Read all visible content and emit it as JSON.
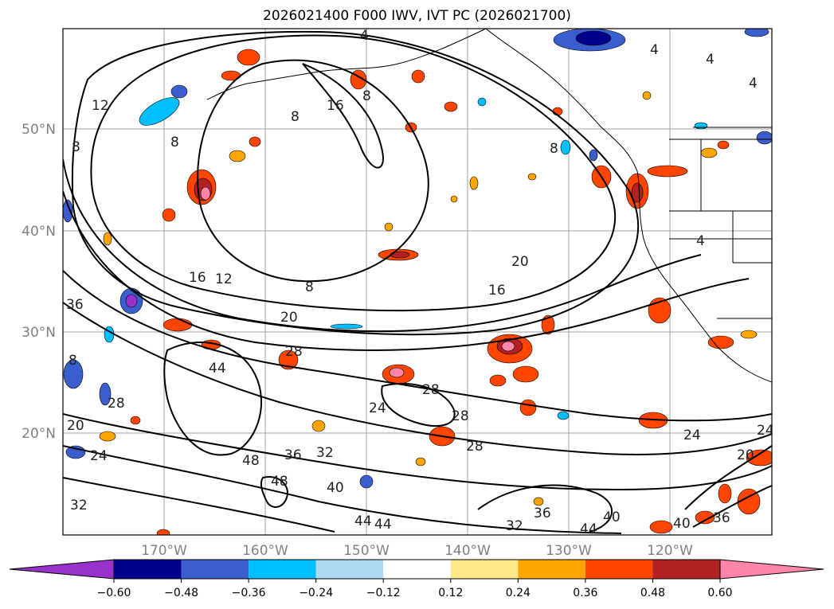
{
  "title": "2026021400 F000 IWV, IVT PC (2026021700)",
  "map": {
    "lat_ticks": [
      "50°N",
      "40°N",
      "30°N",
      "20°N"
    ],
    "lon_ticks": [
      "170°W",
      "160°W",
      "150°W",
      "140°W",
      "130°W",
      "120°W"
    ],
    "contour_labels": [
      "4",
      "12",
      "8",
      "16",
      "8",
      "8",
      "8",
      "16",
      "12",
      "8",
      "20",
      "16",
      "20",
      "28",
      "44",
      "28",
      "24",
      "28",
      "28",
      "32",
      "36",
      "48",
      "48",
      "40",
      "44",
      "44",
      "32",
      "36",
      "44",
      "40",
      "40",
      "36",
      "24",
      "24",
      "20",
      "36",
      "8",
      "32",
      "28",
      "20",
      "24",
      "4",
      "4",
      "4",
      "8",
      "4"
    ]
  },
  "colorbar": {
    "levels": [
      "−0.60",
      "−0.48",
      "−0.36",
      "−0.24",
      "−0.12",
      "0.12",
      "0.24",
      "0.36",
      "0.48",
      "0.60"
    ],
    "colors": [
      "#9932CC",
      "#00008B",
      "#3A5FCD",
      "#00BFFF",
      "#ADD8F0",
      "#FFFFFF",
      "#FFE88A",
      "#FFA500",
      "#FF4500",
      "#B22222",
      "#FF85AA"
    ]
  }
}
